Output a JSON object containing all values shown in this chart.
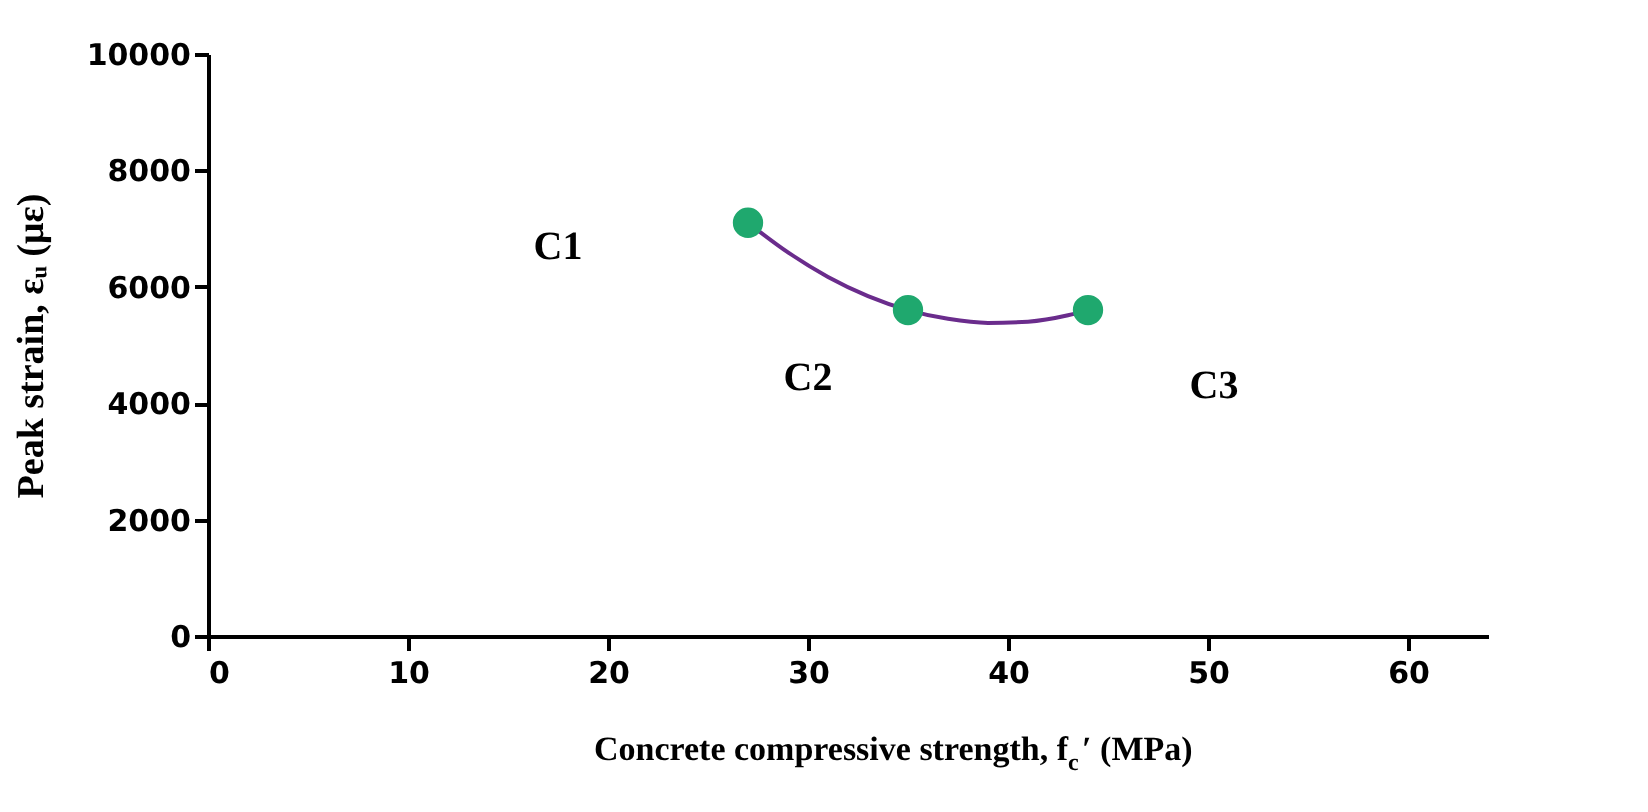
{
  "chart_data": {
    "type": "scatter",
    "xlabel": "Concrete compressive strength, f$_{c}$′ (MPa)",
    "ylabel": "Peak strain, εᵤ (με)",
    "xlim": [
      0,
      64
    ],
    "ylim": [
      0,
      10000
    ],
    "xticks": [
      0,
      10,
      20,
      30,
      40,
      50,
      60
    ],
    "yticks": [
      0,
      2000,
      4000,
      6000,
      8000,
      10000
    ],
    "marker": "circle",
    "series": [
      {
        "color": "#1fa86e",
        "x": [
          27,
          35,
          44
        ],
        "values": [
          7100,
          5600,
          5600
        ]
      },
      {
        "type": "line",
        "color": "#6a2c8c",
        "line_style": "solid",
        "marker": "none",
        "x": [
          27,
          29,
          31,
          33,
          35,
          37,
          39,
          41,
          43,
          44
        ],
        "values": [
          7100,
          6590,
          6170,
          5840,
          5600,
          5450,
          5380,
          5400,
          5510,
          5600
        ]
      }
    ],
    "annotations": [
      "C1",
      "C2",
      "C3"
    ]
  }
}
